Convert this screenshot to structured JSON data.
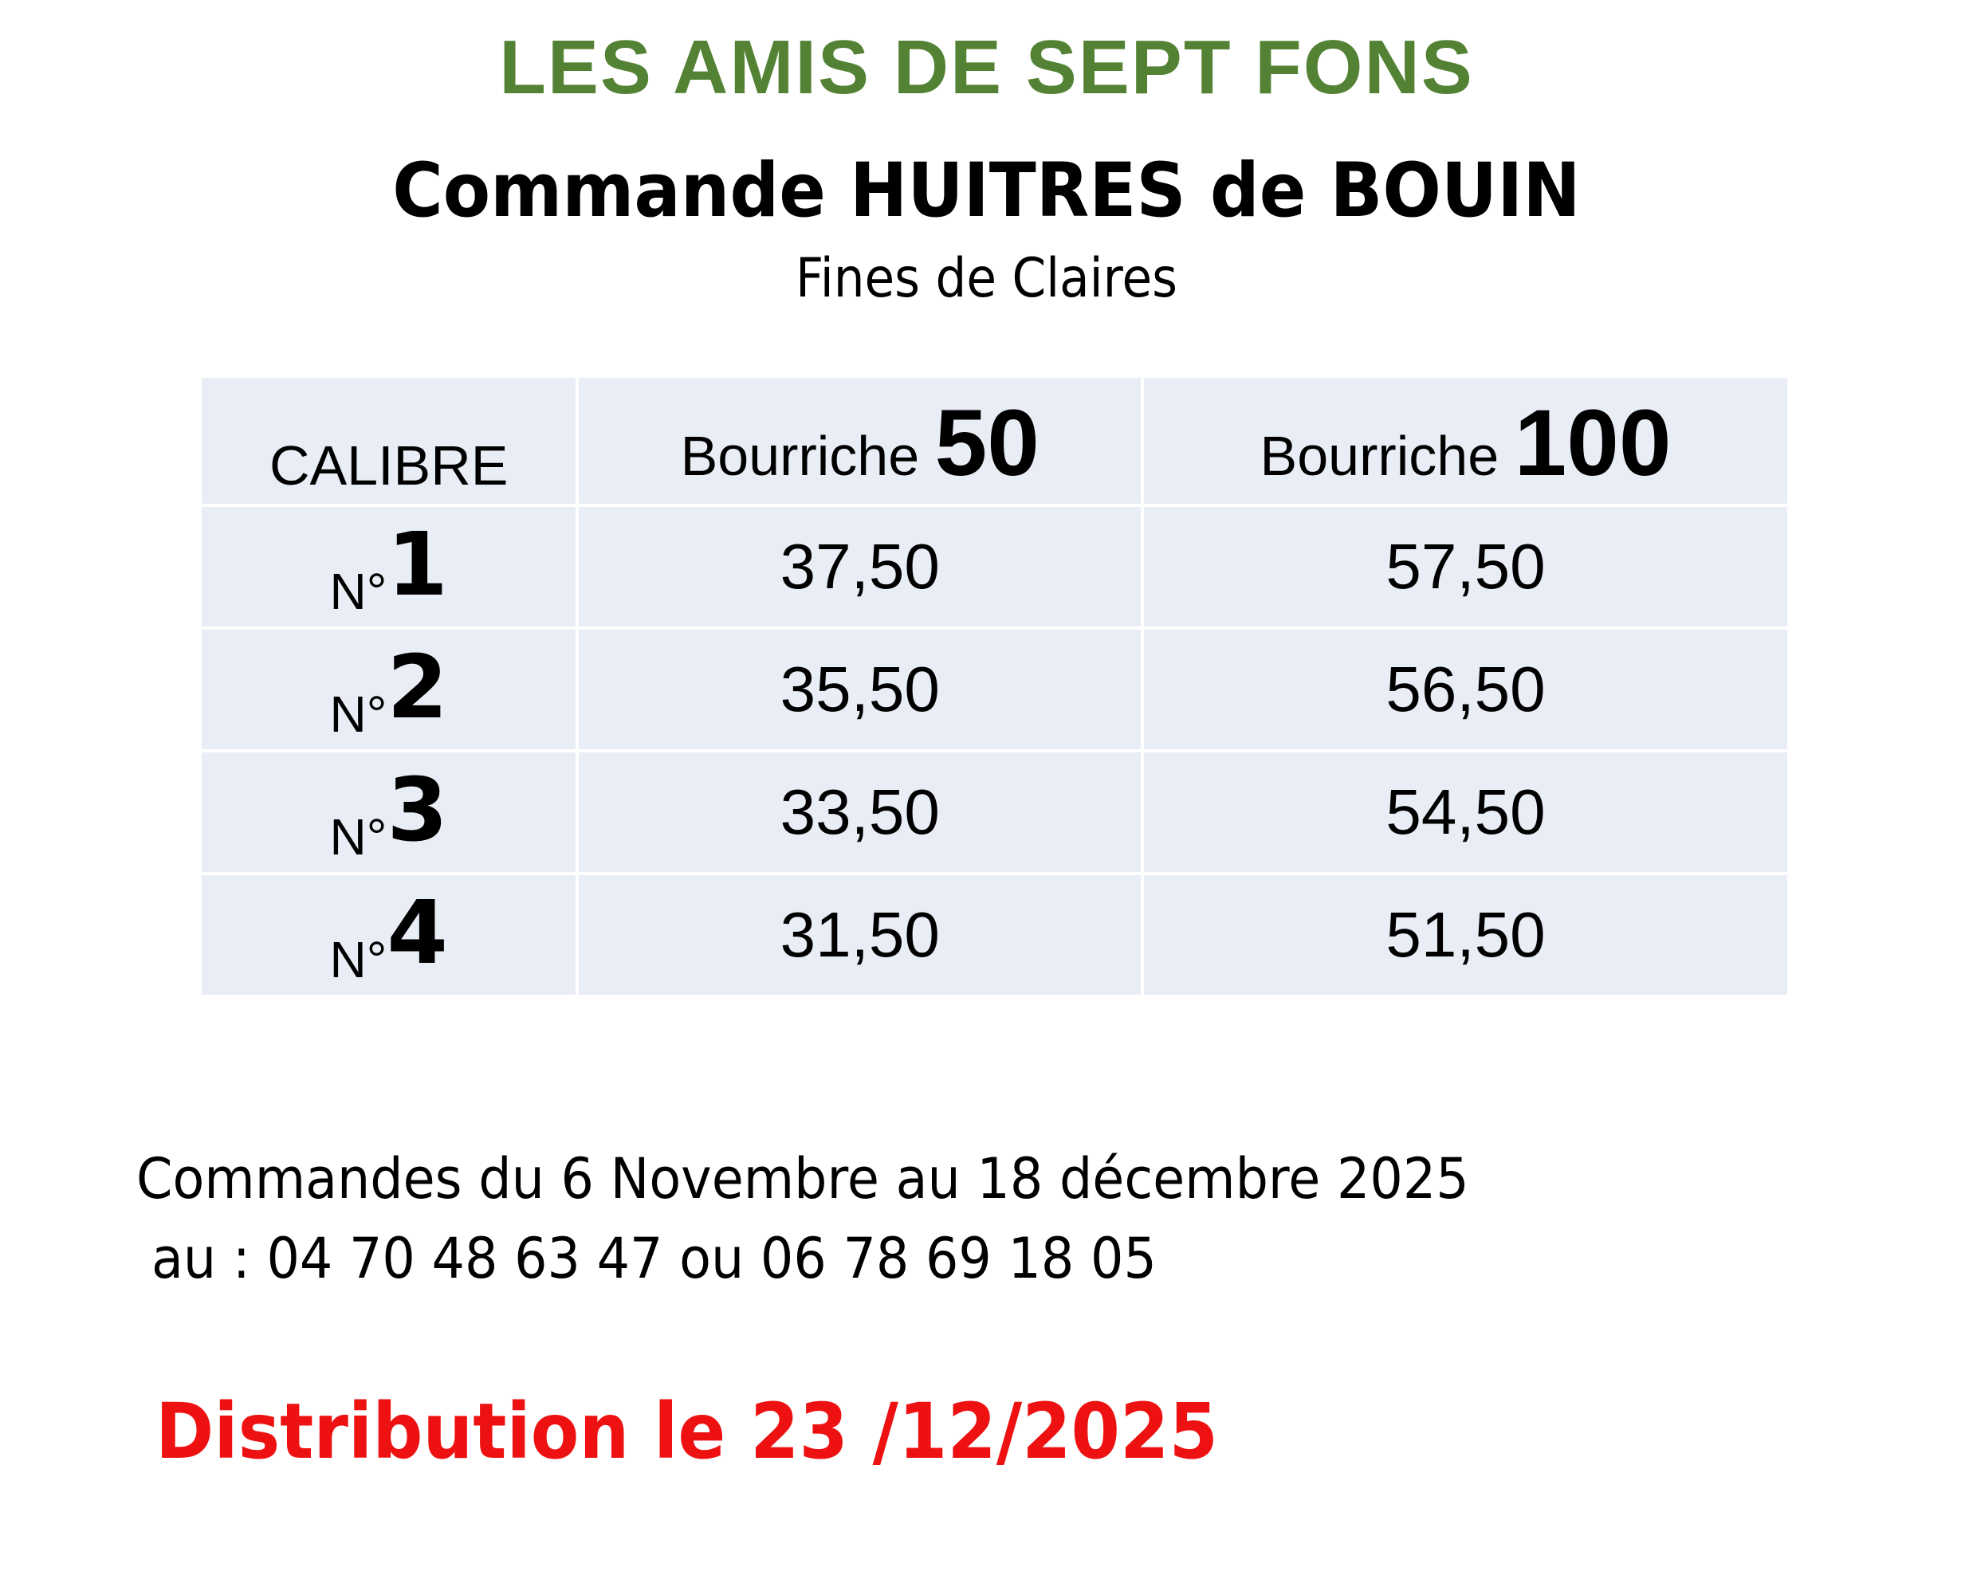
{
  "header": {
    "organization": "LES AMIS DE SEPT FONS",
    "title": "Commande HUITRES de BOUIN",
    "subtitle": "Fines de Claires"
  },
  "table": {
    "columns": [
      {
        "label": "CALIBRE",
        "emphasis": ""
      },
      {
        "label": "Bourriche",
        "emphasis": "50"
      },
      {
        "label": "Bourriche",
        "emphasis": "100"
      }
    ],
    "rows": [
      {
        "prefix": "N°",
        "calibre": "1",
        "price_50": "37,50",
        "price_100": "57,50"
      },
      {
        "prefix": "N°",
        "calibre": "2",
        "price_50": "35,50",
        "price_100": "56,50"
      },
      {
        "prefix": "N°",
        "calibre": "3",
        "price_50": "33,50",
        "price_100": "54,50"
      },
      {
        "prefix": "N°",
        "calibre": "4",
        "price_50": "31,50",
        "price_100": "51,50"
      }
    ]
  },
  "footer": {
    "orders_period": "Commandes du 6 Novembre au 18 décembre 2025",
    "phones": "au : 04 70 48 63 47 ou 06 78 69 18 05",
    "distribution": "Distribution le 23 /12/2025"
  },
  "colors": {
    "organization": "#548235",
    "distribution": "#ee1111",
    "table_bg": "#e9edf5"
  }
}
